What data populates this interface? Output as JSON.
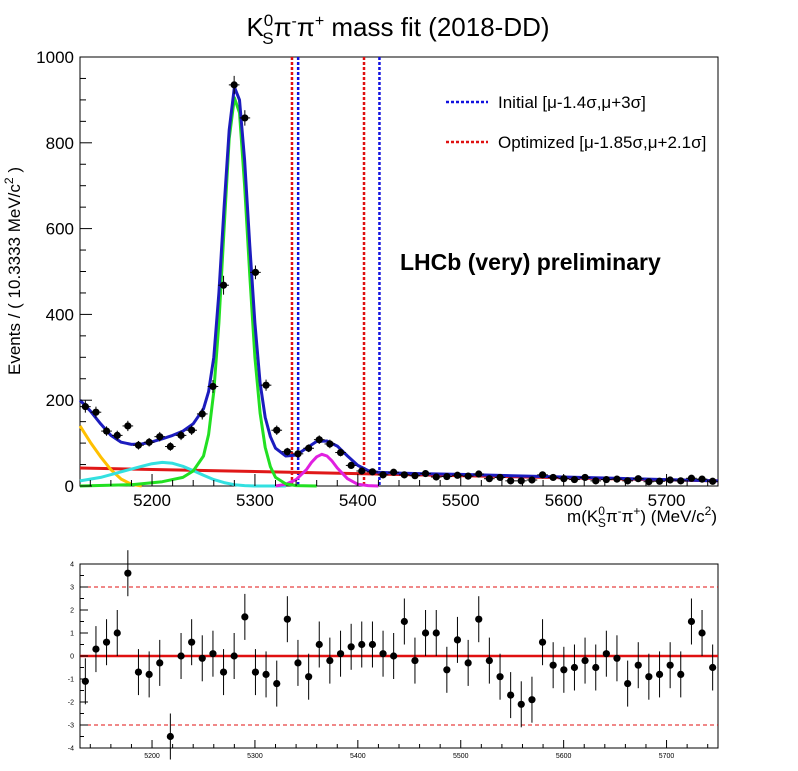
{
  "title": {
    "main": "K",
    "sup": "0",
    "sub": "S",
    "rest": "π",
    "rest_sup": "-",
    "rest2": "π",
    "rest2_sup": "+",
    "tail": " mass fit (2018-DD)"
  },
  "ylabel": "Events / ( 10.3333 MeV/c",
  "ylabel_sup": "2",
  "ylabel_end": " )",
  "xlabel_parts": {
    "a": "m(K",
    "b_sup": "0",
    "b_sub": "S",
    "c": "π",
    "c_sup": "-",
    "d": "π",
    "d_sup": "+",
    "e": ") (MeV/c",
    "e_sup": "2",
    "f": ")"
  },
  "legend": {
    "initial": "Initial  [μ-1.4σ,μ+3σ]",
    "optimized": "Optimized [μ-1.85σ,μ+2.1σ]"
  },
  "watermark": "LHCb (very) preliminary",
  "colors": {
    "total": "#1c1cbe",
    "signal": "#22e022",
    "comb": "#e01818",
    "partreco_low": "#ffc000",
    "partreco2": "#33e0e0",
    "bs": "#e020e0",
    "initial": "#1010e0",
    "optimized": "#e01010",
    "points": "#000000"
  },
  "chart_data": [
    {
      "type": "scatter",
      "xlim": [
        5130,
        5750
      ],
      "ylim": [
        0,
        1000
      ],
      "x_ticks": [
        5200,
        5300,
        5400,
        5500,
        5600,
        5700
      ],
      "y_ticks": [
        0,
        200,
        400,
        600,
        800,
        1000
      ],
      "data_points": {
        "x": [
          5135.2,
          5145.5,
          5155.8,
          5166.2,
          5176.5,
          5186.8,
          5197.2,
          5207.5,
          5217.8,
          5228.2,
          5238.5,
          5248.8,
          5259.2,
          5269.5,
          5279.8,
          5290.2,
          5300.5,
          5310.8,
          5321.2,
          5331.5,
          5341.8,
          5352.2,
          5362.5,
          5372.8,
          5383.2,
          5393.5,
          5403.8,
          5414.2,
          5424.5,
          5434.8,
          5445.2,
          5455.5,
          5465.8,
          5476.2,
          5486.5,
          5496.8,
          5507.2,
          5517.5,
          5527.8,
          5538.2,
          5548.5,
          5558.8,
          5569.2,
          5579.5,
          5589.8,
          5600.2,
          5610.5,
          5620.8,
          5631.2,
          5641.5,
          5651.8,
          5662.2,
          5672.5,
          5682.8,
          5693.2,
          5703.5,
          5713.8,
          5724.2,
          5734.5,
          5744.8
        ],
        "y": [
          185,
          172,
          128,
          118,
          140,
          95,
          102,
          115,
          92,
          118,
          130,
          168,
          232,
          468,
          935,
          858,
          498,
          235,
          130,
          80,
          75,
          88,
          108,
          98,
          78,
          48,
          35,
          33,
          26,
          32,
          26,
          24,
          29,
          21,
          22,
          25,
          23,
          28,
          17,
          20,
          12,
          12,
          14,
          26,
          20,
          17,
          15,
          20,
          12,
          15,
          16,
          12,
          17,
          10,
          11,
          14,
          12,
          18,
          16,
          11
        ],
        "yerr": [
          14,
          13,
          11,
          11,
          12,
          10,
          10,
          11,
          10,
          11,
          11,
          13,
          15,
          22,
          21,
          18,
          16,
          13,
          11,
          9,
          9,
          9,
          10,
          10,
          9,
          7,
          6,
          6,
          5,
          6,
          5,
          5,
          5,
          5,
          5,
          5,
          5,
          5,
          4,
          4,
          3,
          3,
          4,
          5,
          4,
          4,
          4,
          4,
          3,
          4,
          4,
          3,
          4,
          3,
          3,
          4,
          3,
          4,
          4,
          3
        ]
      },
      "curves": [
        {
          "name": "total",
          "x": [
            5130,
            5140,
            5150,
            5160,
            5170,
            5180,
            5190,
            5200,
            5210,
            5220,
            5230,
            5240,
            5250,
            5255,
            5260,
            5265,
            5270,
            5275,
            5280,
            5285,
            5290,
            5295,
            5300,
            5305,
            5310,
            5315,
            5320,
            5330,
            5340,
            5350,
            5360,
            5370,
            5380,
            5390,
            5400,
            5410,
            5420,
            5440,
            5460,
            5480,
            5500,
            5550,
            5600,
            5650,
            5700,
            5750
          ],
          "y": [
            200,
            175,
            145,
            118,
            102,
            97,
            98,
            103,
            110,
            118,
            128,
            145,
            180,
            220,
            300,
            450,
            650,
            830,
            930,
            900,
            760,
            560,
            380,
            240,
            160,
            115,
            88,
            70,
            72,
            88,
            104,
            105,
            93,
            70,
            48,
            36,
            32,
            30,
            29,
            28,
            27,
            24,
            21,
            18,
            15,
            12
          ]
        },
        {
          "name": "signal",
          "x": [
            5130,
            5180,
            5210,
            5230,
            5240,
            5250,
            5255,
            5260,
            5265,
            5270,
            5275,
            5280,
            5285,
            5290,
            5295,
            5300,
            5305,
            5310,
            5315,
            5320,
            5330,
            5340,
            5360
          ],
          "y": [
            0,
            3,
            10,
            20,
            35,
            70,
            120,
            220,
            380,
            600,
            810,
            905,
            870,
            700,
            490,
            300,
            170,
            90,
            45,
            20,
            5,
            1,
            0
          ]
        },
        {
          "name": "comb",
          "x": [
            5130,
            5750
          ],
          "y": [
            42,
            12
          ]
        },
        {
          "name": "partreco_low",
          "x": [
            5130,
            5140,
            5150,
            5160,
            5170,
            5180,
            5190
          ],
          "y": [
            140,
            102,
            68,
            38,
            16,
            4,
            0
          ]
        },
        {
          "name": "partreco2",
          "x": [
            5130,
            5150,
            5170,
            5190,
            5200,
            5210,
            5220,
            5230,
            5240,
            5250,
            5260,
            5270,
            5280,
            5290,
            5300,
            5310,
            5320,
            5330
          ],
          "y": [
            12,
            20,
            33,
            46,
            52,
            55,
            53,
            46,
            36,
            25,
            15,
            8,
            3,
            1,
            0,
            0,
            0,
            0
          ]
        },
        {
          "name": "bs",
          "x": [
            5320,
            5330,
            5340,
            5350,
            5355,
            5360,
            5365,
            5370,
            5375,
            5380,
            5390,
            5400,
            5410,
            5420
          ],
          "y": [
            0,
            4,
            15,
            38,
            55,
            68,
            74,
            70,
            58,
            42,
            17,
            4,
            1,
            0
          ]
        }
      ],
      "vlines": [
        {
          "name": "optimized-low",
          "x": 5336
        },
        {
          "name": "initial-low",
          "x": 5342
        },
        {
          "name": "optimized-high",
          "x": 5406
        },
        {
          "name": "initial-high",
          "x": 5421
        }
      ]
    },
    {
      "type": "scatter",
      "xlim": [
        5130,
        5750
      ],
      "ylim": [
        -4,
        4
      ],
      "x_ticks": [
        5200,
        5300,
        5400,
        5500,
        5600,
        5700
      ],
      "y_ticks": [
        -4,
        -3,
        -2,
        -1,
        0,
        1,
        2,
        3,
        4
      ],
      "ref_lines": [
        3,
        -3
      ],
      "zero_line": 0,
      "pulls": [
        -1.1,
        0.3,
        0.6,
        1.0,
        3.6,
        -0.7,
        -0.8,
        -0.3,
        -3.5,
        0.0,
        0.6,
        -0.1,
        0.1,
        -0.7,
        0.0,
        1.7,
        -0.7,
        -0.8,
        -1.2,
        1.6,
        -0.3,
        -0.9,
        0.5,
        -0.2,
        0.1,
        0.4,
        0.5,
        0.5,
        0.1,
        0.0,
        1.5,
        -0.2,
        1.0,
        1.0,
        -0.6,
        0.7,
        -0.3,
        1.6,
        -0.2,
        -0.9,
        -1.7,
        -2.1,
        -1.9,
        0.6,
        -0.4,
        -0.6,
        -0.5,
        -0.2,
        -0.5,
        0.1,
        -0.1,
        -1.2,
        -0.4,
        -0.9,
        -0.8,
        -0.4,
        -0.8,
        1.5,
        1.0,
        -0.5
      ],
      "pull_err": 1
    }
  ]
}
